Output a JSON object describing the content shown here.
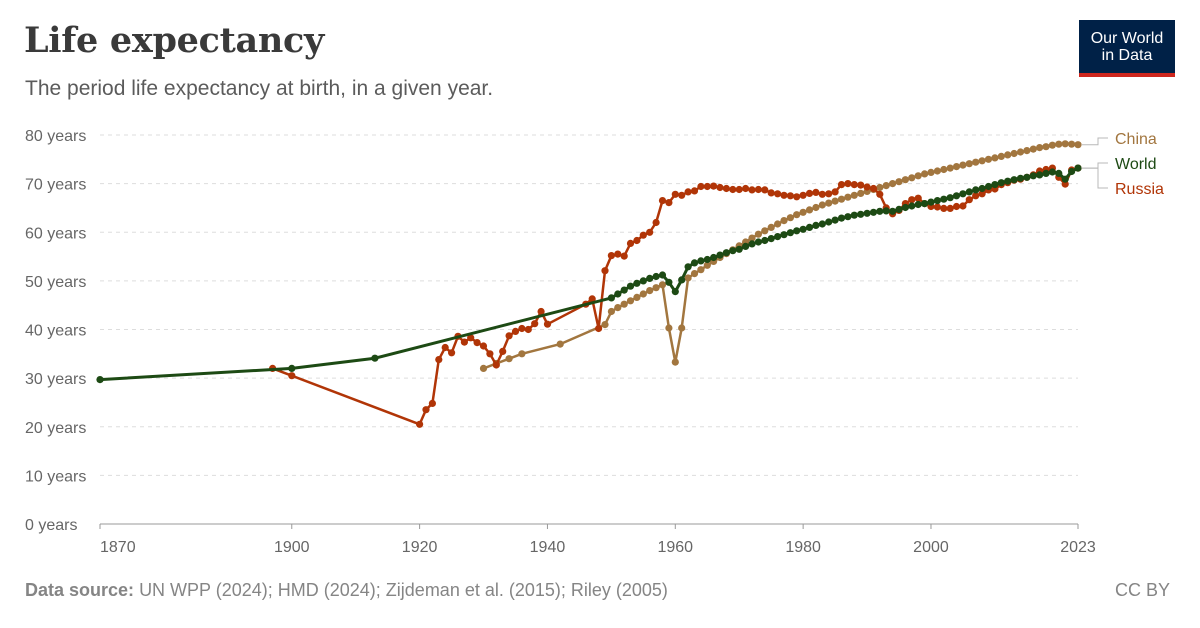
{
  "header": {
    "title": "Life expectancy",
    "subtitle": "The period life expectancy at birth, in a given year."
  },
  "logo": {
    "line1": "Our World",
    "line2": "in Data"
  },
  "footer": {
    "source_label": "Data source:",
    "source_text": "UN WPP (2024); HMD (2024); Zijdeman et al. (2015); Riley (2005)",
    "license": "CC BY"
  },
  "chart_data": {
    "type": "line",
    "title": "Life expectancy",
    "subtitle": "The period life expectancy at birth, in a given year.",
    "xlabel": "",
    "ylabel": "",
    "xlim": [
      1870,
      2023
    ],
    "ylim": [
      0,
      80
    ],
    "x_ticks": [
      1870,
      1900,
      1920,
      1940,
      1960,
      1980,
      2000,
      2023
    ],
    "y_ticks": [
      0,
      10,
      20,
      30,
      40,
      50,
      60,
      70,
      80
    ],
    "y_tick_suffix": " years",
    "grid": "horizontal dashed",
    "legend": "right, end-of-line labels",
    "series": [
      {
        "name": "China",
        "color": "#a2763f",
        "points": [
          [
            1930,
            32
          ],
          [
            1932,
            33
          ],
          [
            1934,
            34
          ],
          [
            1936,
            35
          ],
          [
            1942,
            37
          ],
          [
            1949,
            41
          ],
          [
            1950,
            43.7
          ],
          [
            1951,
            44.5
          ],
          [
            1952,
            45.2
          ],
          [
            1953,
            45.9
          ],
          [
            1954,
            46.6
          ],
          [
            1955,
            47.3
          ],
          [
            1956,
            48
          ],
          [
            1957,
            48.6
          ],
          [
            1958,
            49.2
          ],
          [
            1959,
            40.3
          ],
          [
            1960,
            33.3
          ],
          [
            1961,
            40.3
          ],
          [
            1962,
            50.6
          ],
          [
            1963,
            51.5
          ],
          [
            1964,
            52.3
          ],
          [
            1965,
            53.2
          ],
          [
            1966,
            54
          ],
          [
            1967,
            54.8
          ],
          [
            1968,
            55.6
          ],
          [
            1969,
            56.4
          ],
          [
            1970,
            57.2
          ],
          [
            1971,
            58
          ],
          [
            1972,
            58.8
          ],
          [
            1973,
            59.6
          ],
          [
            1974,
            60.3
          ],
          [
            1975,
            61
          ],
          [
            1976,
            61.7
          ],
          [
            1977,
            62.4
          ],
          [
            1978,
            63
          ],
          [
            1979,
            63.6
          ],
          [
            1980,
            64.1
          ],
          [
            1981,
            64.6
          ],
          [
            1982,
            65.1
          ],
          [
            1983,
            65.6
          ],
          [
            1984,
            66
          ],
          [
            1985,
            66.4
          ],
          [
            1986,
            66.8
          ],
          [
            1987,
            67.2
          ],
          [
            1988,
            67.6
          ],
          [
            1989,
            68
          ],
          [
            1990,
            68.4
          ],
          [
            1991,
            68.8
          ],
          [
            1992,
            69.2
          ],
          [
            1993,
            69.6
          ],
          [
            1994,
            70
          ],
          [
            1995,
            70.4
          ],
          [
            1996,
            70.8
          ],
          [
            1997,
            71.2
          ],
          [
            1998,
            71.6
          ],
          [
            1999,
            72
          ],
          [
            2000,
            72.3
          ],
          [
            2001,
            72.6
          ],
          [
            2002,
            72.9
          ],
          [
            2003,
            73.2
          ],
          [
            2004,
            73.5
          ],
          [
            2005,
            73.8
          ],
          [
            2006,
            74.1
          ],
          [
            2007,
            74.4
          ],
          [
            2008,
            74.7
          ],
          [
            2009,
            75
          ],
          [
            2010,
            75.3
          ],
          [
            2011,
            75.6
          ],
          [
            2012,
            75.9
          ],
          [
            2013,
            76.2
          ],
          [
            2014,
            76.5
          ],
          [
            2015,
            76.8
          ],
          [
            2016,
            77.1
          ],
          [
            2017,
            77.4
          ],
          [
            2018,
            77.6
          ],
          [
            2019,
            77.9
          ],
          [
            2020,
            78.1
          ],
          [
            2021,
            78.2
          ],
          [
            2022,
            78.1
          ],
          [
            2023,
            78
          ]
        ]
      },
      {
        "name": "World",
        "color": "#1d4a14",
        "points": [
          [
            1870,
            29.7
          ],
          [
            1900,
            32
          ],
          [
            1913,
            34.1
          ],
          [
            1950,
            46.5
          ],
          [
            1951,
            47.3
          ],
          [
            1952,
            48.1
          ],
          [
            1953,
            48.9
          ],
          [
            1954,
            49.5
          ],
          [
            1955,
            50
          ],
          [
            1956,
            50.5
          ],
          [
            1957,
            50.9
          ],
          [
            1958,
            51.2
          ],
          [
            1959,
            49.7
          ],
          [
            1960,
            47.8
          ],
          [
            1961,
            50.2
          ],
          [
            1962,
            52.9
          ],
          [
            1963,
            53.7
          ],
          [
            1964,
            54.1
          ],
          [
            1965,
            54.4
          ],
          [
            1966,
            54.8
          ],
          [
            1967,
            55.3
          ],
          [
            1968,
            55.8
          ],
          [
            1969,
            56.2
          ],
          [
            1970,
            56.5
          ],
          [
            1971,
            57.1
          ],
          [
            1972,
            57.6
          ],
          [
            1973,
            58
          ],
          [
            1974,
            58.3
          ],
          [
            1975,
            58.7
          ],
          [
            1976,
            59.1
          ],
          [
            1977,
            59.5
          ],
          [
            1978,
            59.9
          ],
          [
            1979,
            60.3
          ],
          [
            1980,
            60.6
          ],
          [
            1981,
            61
          ],
          [
            1982,
            61.4
          ],
          [
            1983,
            61.7
          ],
          [
            1984,
            62.1
          ],
          [
            1985,
            62.5
          ],
          [
            1986,
            62.9
          ],
          [
            1987,
            63.2
          ],
          [
            1988,
            63.5
          ],
          [
            1989,
            63.7
          ],
          [
            1990,
            63.9
          ],
          [
            1991,
            64.1
          ],
          [
            1992,
            64.3
          ],
          [
            1993,
            64.4
          ],
          [
            1994,
            64.3
          ],
          [
            1995,
            64.7
          ],
          [
            1996,
            65.1
          ],
          [
            1997,
            65.4
          ],
          [
            1998,
            65.7
          ],
          [
            1999,
            65.9
          ],
          [
            2000,
            66.2
          ],
          [
            2001,
            66.5
          ],
          [
            2002,
            66.8
          ],
          [
            2003,
            67.1
          ],
          [
            2004,
            67.5
          ],
          [
            2005,
            67.9
          ],
          [
            2006,
            68.3
          ],
          [
            2007,
            68.7
          ],
          [
            2008,
            69
          ],
          [
            2009,
            69.4
          ],
          [
            2010,
            69.8
          ],
          [
            2011,
            70.2
          ],
          [
            2012,
            70.5
          ],
          [
            2013,
            70.8
          ],
          [
            2014,
            71.1
          ],
          [
            2015,
            71.3
          ],
          [
            2016,
            71.6
          ],
          [
            2017,
            71.8
          ],
          [
            2018,
            72.1
          ],
          [
            2019,
            72.4
          ],
          [
            2020,
            72.1
          ],
          [
            2021,
            70.9
          ],
          [
            2022,
            72.5
          ],
          [
            2023,
            73.2
          ]
        ]
      },
      {
        "name": "Russia",
        "color": "#b13507",
        "points": [
          [
            1897,
            32
          ],
          [
            1900,
            30.5
          ],
          [
            1920,
            20.5
          ],
          [
            1921,
            23.5
          ],
          [
            1922,
            24.8
          ],
          [
            1923,
            33.8
          ],
          [
            1924,
            36.3
          ],
          [
            1925,
            35.2
          ],
          [
            1926,
            38.6
          ],
          [
            1927,
            37.4
          ],
          [
            1928,
            38.3
          ],
          [
            1929,
            37.3
          ],
          [
            1930,
            36.6
          ],
          [
            1931,
            35
          ],
          [
            1932,
            32.7
          ],
          [
            1933,
            35.5
          ],
          [
            1934,
            38.7
          ],
          [
            1935,
            39.6
          ],
          [
            1936,
            40.2
          ],
          [
            1937,
            40
          ],
          [
            1938,
            41.2
          ],
          [
            1939,
            43.7
          ],
          [
            1940,
            41.1
          ],
          [
            1946,
            45.2
          ],
          [
            1947,
            46.3
          ],
          [
            1948,
            40.2
          ],
          [
            1949,
            52.1
          ],
          [
            1950,
            55.2
          ],
          [
            1951,
            55.5
          ],
          [
            1952,
            55.1
          ],
          [
            1953,
            57.7
          ],
          [
            1954,
            58.3
          ],
          [
            1955,
            59.4
          ],
          [
            1956,
            60
          ],
          [
            1957,
            62
          ],
          [
            1958,
            66.5
          ],
          [
            1959,
            66.1
          ],
          [
            1960,
            67.8
          ],
          [
            1961,
            67.6
          ],
          [
            1962,
            68.3
          ],
          [
            1963,
            68.5
          ],
          [
            1964,
            69.4
          ],
          [
            1965,
            69.4
          ],
          [
            1966,
            69.5
          ],
          [
            1967,
            69.2
          ],
          [
            1968,
            69
          ],
          [
            1969,
            68.8
          ],
          [
            1970,
            68.8
          ],
          [
            1971,
            69
          ],
          [
            1972,
            68.7
          ],
          [
            1973,
            68.8
          ],
          [
            1974,
            68.7
          ],
          [
            1975,
            68.1
          ],
          [
            1976,
            67.9
          ],
          [
            1977,
            67.6
          ],
          [
            1978,
            67.5
          ],
          [
            1979,
            67.3
          ],
          [
            1980,
            67.6
          ],
          [
            1981,
            68
          ],
          [
            1982,
            68.2
          ],
          [
            1983,
            67.8
          ],
          [
            1984,
            67.9
          ],
          [
            1985,
            68.3
          ],
          [
            1986,
            69.8
          ],
          [
            1987,
            70
          ],
          [
            1988,
            69.8
          ],
          [
            1989,
            69.7
          ],
          [
            1990,
            69.3
          ],
          [
            1991,
            69
          ],
          [
            1992,
            67.8
          ],
          [
            1993,
            65
          ],
          [
            1994,
            63.8
          ],
          [
            1995,
            64.5
          ],
          [
            1996,
            65.9
          ],
          [
            1997,
            66.7
          ],
          [
            1998,
            67
          ],
          [
            1999,
            65.9
          ],
          [
            2000,
            65.3
          ],
          [
            2001,
            65.2
          ],
          [
            2002,
            64.9
          ],
          [
            2003,
            64.9
          ],
          [
            2004,
            65.3
          ],
          [
            2005,
            65.4
          ],
          [
            2006,
            66.7
          ],
          [
            2007,
            67.5
          ],
          [
            2008,
            67.9
          ],
          [
            2009,
            68.7
          ],
          [
            2010,
            68.9
          ],
          [
            2011,
            69.8
          ],
          [
            2012,
            70.2
          ],
          [
            2013,
            70.7
          ],
          [
            2014,
            70.9
          ],
          [
            2015,
            71.3
          ],
          [
            2016,
            71.8
          ],
          [
            2017,
            72.6
          ],
          [
            2018,
            72.9
          ],
          [
            2019,
            73.2
          ],
          [
            2020,
            71.3
          ],
          [
            2021,
            69.9
          ],
          [
            2022,
            72.8
          ],
          [
            2023,
            73.2
          ]
        ]
      }
    ],
    "legend_order": [
      "China",
      "World",
      "Russia"
    ]
  }
}
